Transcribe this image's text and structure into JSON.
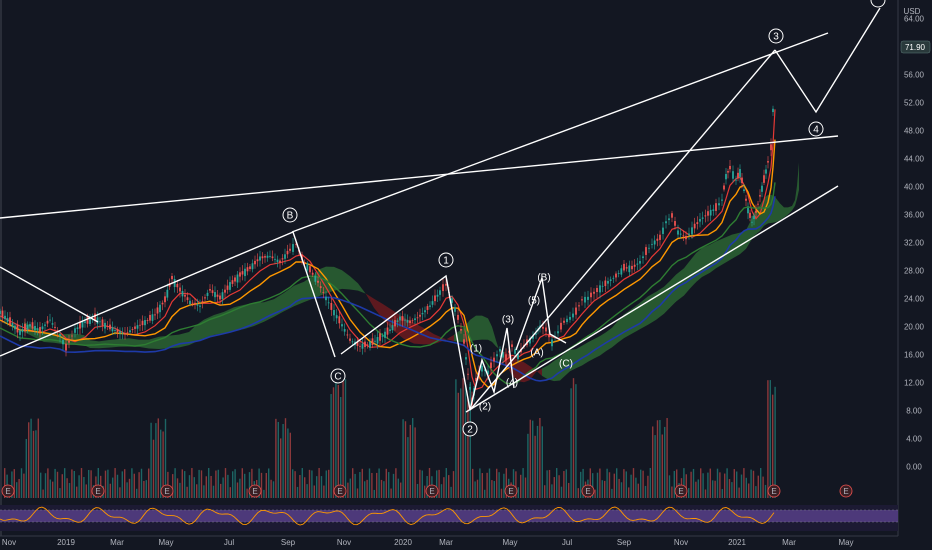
{
  "chart_data": {
    "type": "candlestick",
    "currency": "USD",
    "last_price": "71.90",
    "y_ticks": [
      "76.00",
      "72.00",
      "68.00",
      "64.00",
      "60.00",
      "56.00",
      "52.00",
      "48.00",
      "44.00",
      "40.00",
      "36.00",
      "32.00",
      "28.00",
      "24.00",
      "20.00",
      "16.00",
      "12.00",
      "8.00",
      "4.00",
      "0.00"
    ],
    "x_ticks": [
      "Nov",
      "2019",
      "Mar",
      "May",
      "Jul",
      "Sep",
      "Nov",
      "2020",
      "Mar",
      "May",
      "Jul",
      "Sep",
      "Nov",
      "2021",
      "Mar",
      "May"
    ],
    "earnings_marker": "E",
    "earnings_count": 11,
    "price_series": [
      {
        "date": "2018-10",
        "close": 31
      },
      {
        "date": "2018-11",
        "close": 32
      },
      {
        "date": "2018-12",
        "close": 30
      },
      {
        "date": "2019-01",
        "close": 32
      },
      {
        "date": "2019-02",
        "close": 33
      },
      {
        "date": "2019-03",
        "close": 32
      },
      {
        "date": "2019-04",
        "close": 35
      },
      {
        "date": "2019-05",
        "close": 37
      },
      {
        "date": "2019-06",
        "close": 36
      },
      {
        "date": "2019-07",
        "close": 39
      },
      {
        "date": "2019-08",
        "close": 42
      },
      {
        "date": "2019-09",
        "close": 43
      },
      {
        "date": "2019-10",
        "close": 39
      },
      {
        "date": "2019-11",
        "close": 30
      },
      {
        "date": "2019-12",
        "close": 31
      },
      {
        "date": "2020-01",
        "close": 34
      },
      {
        "date": "2020-02",
        "close": 37
      },
      {
        "date": "2020-03",
        "close": 22
      },
      {
        "date": "2020-04",
        "close": 28
      },
      {
        "date": "2020-05",
        "close": 30
      },
      {
        "date": "2020-06",
        "close": 33
      },
      {
        "date": "2020-07",
        "close": 32
      },
      {
        "date": "2020-08",
        "close": 36
      },
      {
        "date": "2020-09",
        "close": 37
      },
      {
        "date": "2020-10",
        "close": 42
      },
      {
        "date": "2020-11",
        "close": 45
      },
      {
        "date": "2020-12",
        "close": 52
      },
      {
        "date": "2021-01",
        "close": 51
      },
      {
        "date": "2021-02",
        "close": 60
      },
      {
        "date": "2021-03",
        "close": 71.9
      }
    ],
    "wave_labels": {
      "primary": [
        "1",
        "2",
        "3",
        "4"
      ],
      "minor": [
        "(1)",
        "(2)",
        "(3)",
        "(4)",
        "(5)"
      ],
      "corrective": [
        "(A)",
        "(B)",
        "(C)"
      ],
      "abc": [
        "B",
        "C"
      ]
    }
  }
}
